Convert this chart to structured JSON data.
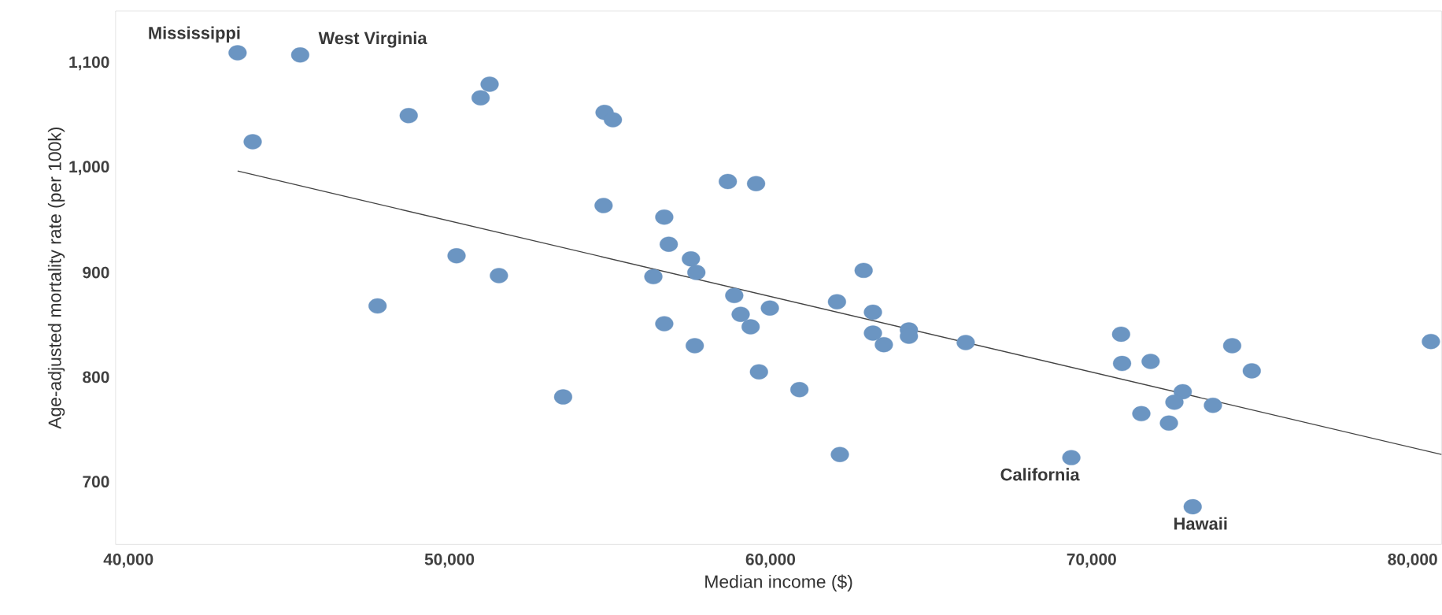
{
  "chart_data": {
    "type": "scatter",
    "xlabel": "Median income ($)",
    "ylabel": "Age-adjusted mortality rate (per 100k)",
    "xlim": [
      39600,
      80900
    ],
    "ylim": [
      640,
      1150
    ],
    "xticks": [
      {
        "value": 40000,
        "label": "40,000"
      },
      {
        "value": 50000,
        "label": "50,000"
      },
      {
        "value": 60000,
        "label": "60,000"
      },
      {
        "value": 70000,
        "label": "70,000"
      },
      {
        "value": 80000,
        "label": "80,000"
      }
    ],
    "yticks": [
      700,
      800,
      900,
      {
        "value": 1000,
        "label": "1,000"
      },
      {
        "value": 1100,
        "label": "1,100"
      }
    ],
    "marker": "circle",
    "series": [
      {
        "color": "#6b95c2",
        "x": [
          43400,
          45350,
          43870,
          51250,
          50970,
          48730,
          54830,
          55090,
          58670,
          59550,
          54800,
          56690,
          56830,
          57520,
          57690,
          50220,
          51540,
          56350,
          47760,
          62900,
          58870,
          62070,
          59070,
          59980,
          63190,
          59380,
          56690,
          57640,
          63190,
          63530,
          64310,
          64310,
          66080,
          59640,
          60900,
          53540,
          62160,
          69370,
          70920,
          70950,
          71840,
          74380,
          74990,
          80570,
          72840,
          72580,
          73780,
          71550,
          72410,
          73150
        ],
        "values": [
          1110,
          1108,
          1025,
          1080,
          1067,
          1050,
          1053,
          1046,
          987,
          985,
          964,
          953,
          927,
          913,
          900,
          916,
          897,
          896,
          868,
          902,
          878,
          872,
          860,
          866,
          862,
          848,
          851,
          830,
          842,
          831,
          845,
          839,
          833,
          805,
          788,
          781,
          726,
          723,
          841,
          813,
          815,
          830,
          806,
          834,
          786,
          776,
          773,
          765,
          756,
          676
        ]
      },
      {
        "type": "line",
        "marker": "none",
        "color": "#444444",
        "x": [
          43400,
          80900
        ],
        "values": [
          997,
          726
        ]
      }
    ],
    "annotations": [
      {
        "text": "Mississippi",
        "x": 43400,
        "y": 1110
      },
      {
        "text": "West Virginia",
        "x": 45350,
        "y": 1108
      },
      {
        "text": "California",
        "x": 69370,
        "y": 723
      },
      {
        "text": "Hawaii",
        "x": 73150,
        "y": 676
      }
    ]
  }
}
